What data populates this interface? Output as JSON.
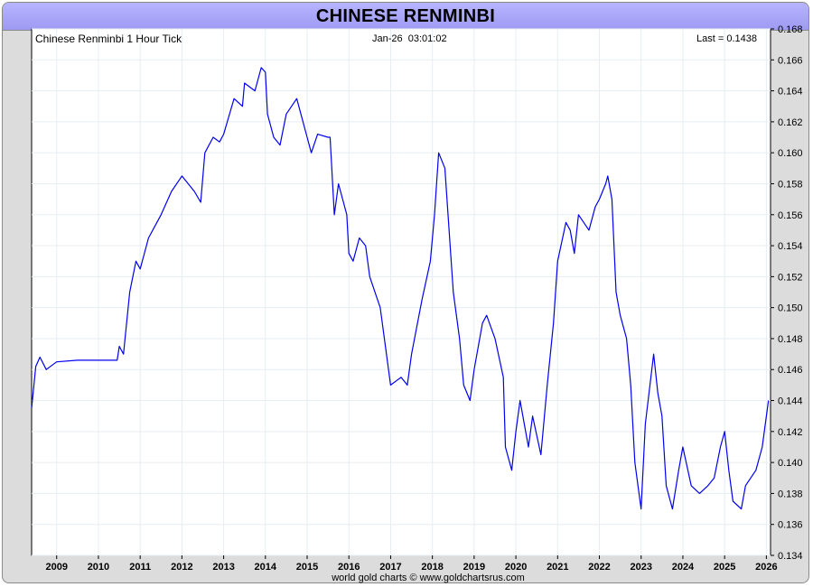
{
  "header": {
    "title": "CHINESE RENMINBI"
  },
  "chart_info": {
    "series_label": "Chinese Renminbi 1 Hour Tick",
    "timestamp": "Jan-26  03:01:02",
    "last": "Last = 0.1438"
  },
  "footer": {
    "credit": "world gold charts © www.goldchartsrus.com"
  },
  "colors": {
    "line": "#0000ee",
    "title_bg": "#a9a6f8",
    "frame": "#dcdcdc",
    "grid": "#e6eef2"
  },
  "chart_data": {
    "type": "line",
    "title": "CHINESE RENMINBI",
    "xlabel": "",
    "ylabel": "",
    "xlim": [
      2008.4,
      2026.1
    ],
    "ylim": [
      0.134,
      0.168
    ],
    "y_axis_side": "right",
    "grid": true,
    "x_ticks": [
      "2009",
      "2010",
      "2011",
      "2012",
      "2013",
      "2014",
      "2015",
      "2016",
      "2017",
      "2018",
      "2019",
      "2020",
      "2021",
      "2022",
      "2023",
      "2024",
      "2025",
      "2026"
    ],
    "y_ticks": [
      "0.134",
      "0.136",
      "0.138",
      "0.140",
      "0.142",
      "0.144",
      "0.146",
      "0.148",
      "0.150",
      "0.152",
      "0.154",
      "0.156",
      "0.158",
      "0.160",
      "0.162",
      "0.164",
      "0.166",
      "0.168"
    ],
    "series": [
      {
        "x": [
          2008.4,
          2008.5,
          2008.6,
          2008.75,
          2009.0,
          2009.5,
          2010.0,
          2010.45,
          2010.5,
          2010.6,
          2010.75,
          2010.9,
          2011.0,
          2011.2,
          2011.5,
          2011.75,
          2012.0,
          2012.3,
          2012.45,
          2012.55,
          2012.75,
          2012.9,
          2013.0,
          2013.25,
          2013.45,
          2013.5,
          2013.75,
          2013.9,
          2014.0,
          2014.05,
          2014.2,
          2014.35,
          2014.5,
          2014.75,
          2014.85,
          2015.0,
          2015.1,
          2015.25,
          2015.5,
          2015.55,
          2015.65,
          2015.75,
          2015.95,
          2016.0,
          2016.1,
          2016.25,
          2016.4,
          2016.5,
          2016.75,
          2016.9,
          2017.0,
          2017.25,
          2017.4,
          2017.5,
          2017.75,
          2017.95,
          2018.05,
          2018.15,
          2018.3,
          2018.5,
          2018.65,
          2018.75,
          2018.9,
          2019.0,
          2019.2,
          2019.3,
          2019.5,
          2019.7,
          2019.75,
          2019.9,
          2020.0,
          2020.1,
          2020.3,
          2020.4,
          2020.6,
          2020.75,
          2020.9,
          2021.0,
          2021.2,
          2021.3,
          2021.4,
          2021.5,
          2021.75,
          2021.9,
          2022.0,
          2022.15,
          2022.2,
          2022.3,
          2022.4,
          2022.5,
          2022.65,
          2022.75,
          2022.85,
          2023.0,
          2023.1,
          2023.3,
          2023.4,
          2023.5,
          2023.6,
          2023.75,
          2023.9,
          2024.0,
          2024.2,
          2024.4,
          2024.6,
          2024.75,
          2024.9,
          2025.0,
          2025.1,
          2025.2,
          2025.4,
          2025.5,
          2025.75,
          2025.9,
          2026.05
        ],
        "y": [
          0.1435,
          0.1462,
          0.1468,
          0.146,
          0.1465,
          0.1466,
          0.1466,
          0.1466,
          0.1475,
          0.147,
          0.151,
          0.153,
          0.1525,
          0.1545,
          0.156,
          0.1575,
          0.1585,
          0.1575,
          0.1568,
          0.16,
          0.161,
          0.1607,
          0.1612,
          0.1635,
          0.163,
          0.1645,
          0.164,
          0.1655,
          0.1652,
          0.1625,
          0.161,
          0.1605,
          0.1625,
          0.1635,
          0.1625,
          0.161,
          0.16,
          0.1612,
          0.161,
          0.161,
          0.156,
          0.158,
          0.156,
          0.1535,
          0.153,
          0.1545,
          0.154,
          0.152,
          0.15,
          0.147,
          0.145,
          0.1455,
          0.145,
          0.147,
          0.1505,
          0.153,
          0.156,
          0.16,
          0.159,
          0.151,
          0.148,
          0.145,
          0.144,
          0.146,
          0.149,
          0.1495,
          0.148,
          0.1455,
          0.141,
          0.1395,
          0.142,
          0.144,
          0.141,
          0.143,
          0.1405,
          0.145,
          0.149,
          0.153,
          0.1555,
          0.155,
          0.1535,
          0.156,
          0.155,
          0.1565,
          0.157,
          0.158,
          0.1585,
          0.157,
          0.151,
          0.1495,
          0.148,
          0.145,
          0.14,
          0.137,
          0.1425,
          0.147,
          0.1445,
          0.143,
          0.1385,
          0.137,
          0.1395,
          0.141,
          0.1385,
          0.138,
          0.1385,
          0.139,
          0.141,
          0.142,
          0.1395,
          0.1375,
          0.137,
          0.1385,
          0.1395,
          0.141,
          0.144
        ]
      }
    ]
  }
}
